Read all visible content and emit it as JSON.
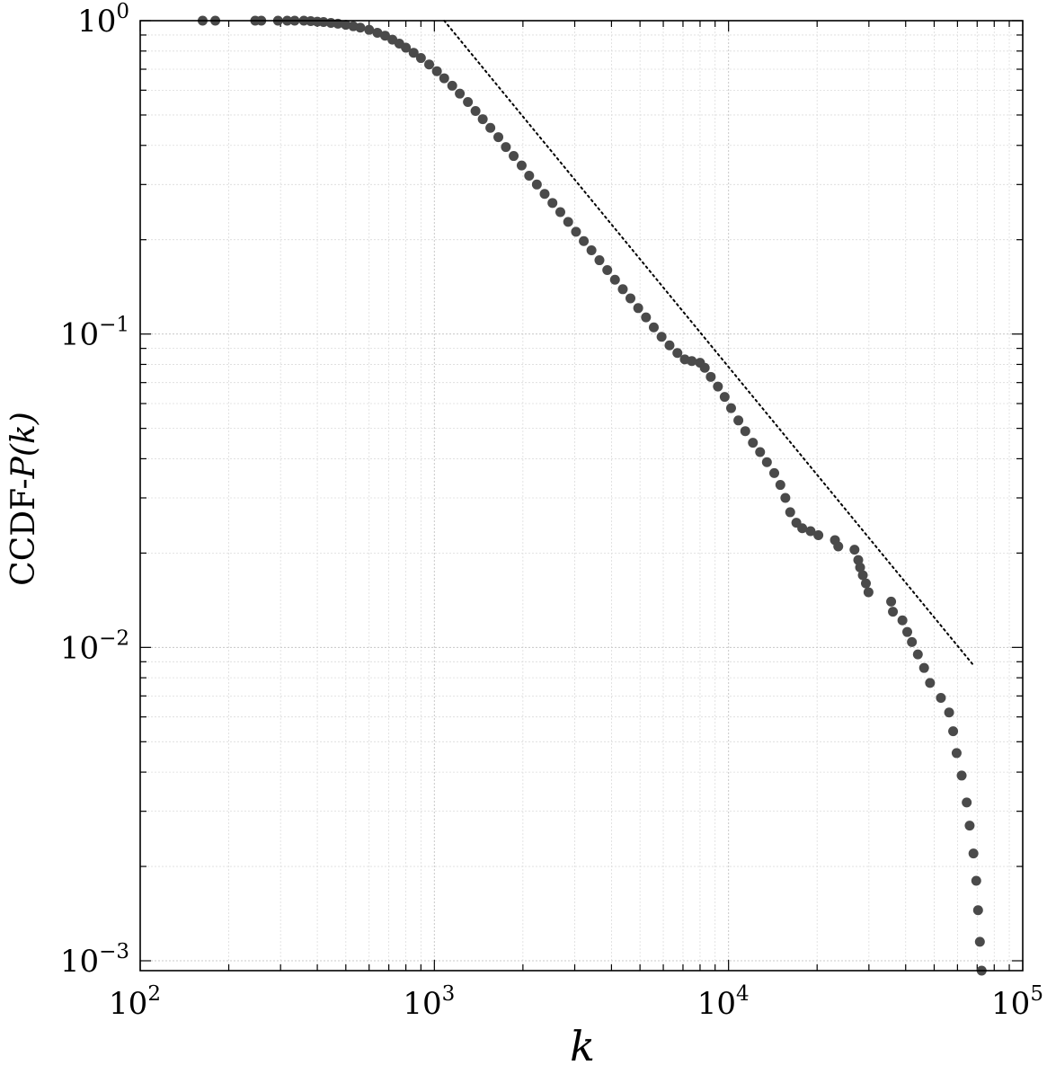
{
  "chart_data": {
    "type": "scatter",
    "title": "",
    "xlabel": "k",
    "ylabel_prefix": "CCDF-",
    "ylabel_math": "P(k)",
    "x_scale": "log",
    "y_scale": "log",
    "xlim": [
      100,
      100000
    ],
    "ylim": [
      0.00093,
      1
    ],
    "x_ticks": [
      {
        "value": 100,
        "base": "10",
        "exp": "2"
      },
      {
        "value": 1000,
        "base": "10",
        "exp": "3"
      },
      {
        "value": 10000,
        "base": "10",
        "exp": "4"
      },
      {
        "value": 100000,
        "base": "10",
        "exp": "5"
      }
    ],
    "y_ticks": [
      {
        "value": 1,
        "base": "10",
        "exp": "0"
      },
      {
        "value": 0.1,
        "base": "10",
        "exp": "−1"
      },
      {
        "value": 0.01,
        "base": "10",
        "exp": "−2"
      },
      {
        "value": 0.001,
        "base": "10",
        "exp": "−3"
      }
    ],
    "grid": true,
    "marker_color": "#4a4a4a",
    "series": [
      {
        "points": [
          [
            163,
            1.0
          ],
          [
            180,
            1.0
          ],
          [
            246,
            1.0
          ],
          [
            258,
            1.0
          ],
          [
            294,
            1.0
          ],
          [
            316,
            1.0
          ],
          [
            335,
            1.0
          ],
          [
            360,
            1.0
          ],
          [
            380,
            0.997
          ],
          [
            400,
            0.993
          ],
          [
            420,
            0.99
          ],
          [
            445,
            0.984
          ],
          [
            470,
            0.978
          ],
          [
            500,
            0.97
          ],
          [
            530,
            0.96
          ],
          [
            560,
            0.95
          ],
          [
            600,
            0.935
          ],
          [
            640,
            0.915
          ],
          [
            680,
            0.895
          ],
          [
            720,
            0.87
          ],
          [
            760,
            0.845
          ],
          [
            800,
            0.82
          ],
          [
            850,
            0.79
          ],
          [
            900,
            0.76
          ],
          [
            960,
            0.725
          ],
          [
            1020,
            0.69
          ],
          [
            1080,
            0.655
          ],
          [
            1150,
            0.62
          ],
          [
            1220,
            0.585
          ],
          [
            1300,
            0.55
          ],
          [
            1380,
            0.515
          ],
          [
            1460,
            0.485
          ],
          [
            1550,
            0.455
          ],
          [
            1650,
            0.425
          ],
          [
            1750,
            0.395
          ],
          [
            1860,
            0.37
          ],
          [
            1980,
            0.345
          ],
          [
            2100,
            0.32
          ],
          [
            2230,
            0.3
          ],
          [
            2370,
            0.28
          ],
          [
            2520,
            0.262
          ],
          [
            2680,
            0.245
          ],
          [
            2850,
            0.228
          ],
          [
            3030,
            0.212
          ],
          [
            3220,
            0.198
          ],
          [
            3420,
            0.185
          ],
          [
            3640,
            0.172
          ],
          [
            3870,
            0.16
          ],
          [
            4110,
            0.149
          ],
          [
            4370,
            0.139
          ],
          [
            4640,
            0.13
          ],
          [
            4930,
            0.121
          ],
          [
            5240,
            0.113
          ],
          [
            5570,
            0.105
          ],
          [
            5920,
            0.098
          ],
          [
            6300,
            0.092
          ],
          [
            6700,
            0.087
          ],
          [
            7100,
            0.083
          ],
          [
            7500,
            0.082
          ],
          [
            8000,
            0.081
          ],
          [
            8300,
            0.078
          ],
          [
            8700,
            0.073
          ],
          [
            9200,
            0.068
          ],
          [
            9700,
            0.063
          ],
          [
            10200,
            0.058
          ],
          [
            10800,
            0.053
          ],
          [
            11400,
            0.049
          ],
          [
            12100,
            0.045
          ],
          [
            12800,
            0.042
          ],
          [
            13500,
            0.039
          ],
          [
            14300,
            0.036
          ],
          [
            15000,
            0.033
          ],
          [
            15600,
            0.03
          ],
          [
            16200,
            0.027
          ],
          [
            17000,
            0.025
          ],
          [
            17800,
            0.024
          ],
          [
            19000,
            0.0235
          ],
          [
            20200,
            0.0228
          ],
          [
            23000,
            0.022
          ],
          [
            23600,
            0.021
          ],
          [
            26800,
            0.0205
          ],
          [
            27600,
            0.019
          ],
          [
            28000,
            0.018
          ],
          [
            28600,
            0.017
          ],
          [
            29300,
            0.016
          ],
          [
            29900,
            0.015
          ],
          [
            35700,
            0.014
          ],
          [
            36200,
            0.013
          ],
          [
            39000,
            0.0122
          ],
          [
            40500,
            0.0112
          ],
          [
            42000,
            0.0104
          ],
          [
            44000,
            0.0095
          ],
          [
            46200,
            0.0086
          ],
          [
            48400,
            0.0077
          ],
          [
            52700,
            0.0069
          ],
          [
            56200,
            0.0062
          ],
          [
            58000,
            0.0054
          ],
          [
            59600,
            0.0046
          ],
          [
            62000,
            0.0039
          ],
          [
            64500,
            0.0032
          ],
          [
            66000,
            0.0027
          ],
          [
            68000,
            0.0022
          ],
          [
            69500,
            0.0018
          ],
          [
            70500,
            0.00145
          ],
          [
            71500,
            0.00115
          ],
          [
            72500,
            0.00093
          ]
        ]
      }
    ],
    "reference_line": {
      "style": "dotted",
      "color": "#000000",
      "points": [
        [
          1080,
          1.0
        ],
        [
          68500,
          0.0087
        ]
      ]
    }
  }
}
